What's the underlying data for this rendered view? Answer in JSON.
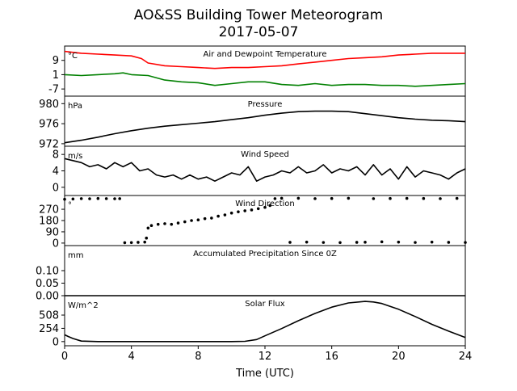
{
  "figure": {
    "title_line1": "AO&SS Building Tower Meteorogram",
    "title_line2": "2017-05-07",
    "xlabel": "Time (UTC)",
    "x_ticks": [
      0,
      4,
      8,
      12,
      16,
      20,
      24
    ],
    "xlim": [
      0,
      24
    ]
  },
  "chart_data": [
    {
      "type": "line",
      "title": "Air and Dewpoint Temperature",
      "unit_label": "°C",
      "ylim": [
        -11,
        17
      ],
      "y_ticks": [
        9,
        1,
        -7
      ],
      "series": [
        {
          "key": "air",
          "color": "#ff0000",
          "x": [
            0,
            0.5,
            1,
            2,
            3,
            4,
            4.6,
            5,
            6,
            7,
            8,
            9,
            10,
            11,
            12,
            13,
            14,
            15,
            16,
            17,
            18,
            19,
            20,
            21,
            22,
            23,
            24
          ],
          "y": [
            14,
            13.5,
            13,
            12.5,
            12,
            11.5,
            10,
            7.5,
            6,
            5.5,
            5,
            4.5,
            5,
            5,
            5.5,
            6,
            7,
            8,
            9,
            10,
            10.5,
            11,
            12,
            12.5,
            13,
            13,
            13
          ]
        },
        {
          "key": "dew",
          "color": "#008000",
          "x": [
            0,
            1,
            2,
            3,
            3.5,
            4,
            5,
            6,
            7,
            8,
            9,
            10,
            11,
            12,
            13,
            14,
            15,
            16,
            17,
            18,
            19,
            20,
            21,
            22,
            23,
            24
          ],
          "y": [
            1,
            0.5,
            1,
            1.5,
            2,
            1,
            0.5,
            -2,
            -3,
            -3.5,
            -5,
            -4,
            -3,
            -3,
            -4.5,
            -5,
            -4,
            -5,
            -4.5,
            -4.5,
            -5,
            -5,
            -5.5,
            -5,
            -4.5,
            -4
          ]
        }
      ]
    },
    {
      "type": "line",
      "title": "Pressure",
      "unit_label": "hPa",
      "ylim": [
        971.5,
        981.5
      ],
      "y_ticks": [
        980,
        976,
        972
      ],
      "series": [
        {
          "key": "pressure",
          "color": "#000000",
          "x": [
            0,
            1,
            2,
            3,
            4,
            5,
            6,
            7,
            8,
            9,
            10,
            11,
            12,
            13,
            14,
            15,
            16,
            17,
            18,
            19,
            20,
            21,
            22,
            23,
            24
          ],
          "y": [
            972.2,
            972.7,
            973.3,
            974.0,
            974.6,
            975.1,
            975.5,
            975.8,
            976.1,
            976.4,
            976.8,
            977.2,
            977.7,
            978.1,
            978.4,
            978.5,
            978.5,
            978.4,
            978.0,
            977.6,
            977.2,
            976.9,
            976.7,
            976.6,
            976.4
          ]
        }
      ]
    },
    {
      "type": "line",
      "title": "Wind Speed",
      "unit_label": "m/s",
      "ylim": [
        -2,
        10
      ],
      "y_ticks": [
        8,
        4,
        0
      ],
      "series": [
        {
          "key": "wind_speed",
          "color": "#000000",
          "x": [
            0,
            0.5,
            1,
            1.5,
            2,
            2.5,
            3,
            3.5,
            4,
            4.5,
            5,
            5.5,
            6,
            6.5,
            7,
            7.5,
            8,
            8.5,
            9,
            9.5,
            10,
            10.5,
            11,
            11.5,
            12,
            12.5,
            13,
            13.5,
            14,
            14.5,
            15,
            15.5,
            16,
            16.5,
            17,
            17.5,
            18,
            18.5,
            19,
            19.5,
            20,
            20.5,
            21,
            21.5,
            22,
            22.5,
            23,
            23.5,
            24
          ],
          "y": [
            7,
            6.5,
            6,
            5,
            5.5,
            4.5,
            6,
            5,
            6,
            4,
            4.5,
            3,
            2.5,
            3,
            2,
            3,
            2,
            2.5,
            1.5,
            2.5,
            3.5,
            3,
            5,
            1.5,
            2.5,
            3,
            4,
            3.5,
            5,
            3.5,
            4,
            5.5,
            3.5,
            4.5,
            4,
            5,
            3,
            5.5,
            3,
            4.5,
            2,
            5,
            2.5,
            4,
            3.5,
            3,
            2,
            3.5,
            4.5
          ]
        }
      ]
    },
    {
      "type": "scatter",
      "title": "Wind Direction",
      "unit_label": "°",
      "ylim": [
        -20,
        380
      ],
      "y_ticks": [
        270,
        180,
        90,
        0
      ],
      "series": [
        {
          "key": "wind_dir",
          "color": "#000000",
          "x": [
            0,
            0.5,
            1,
            1.5,
            2,
            2.5,
            3,
            3.3,
            3.6,
            4,
            4.4,
            4.8,
            4.9,
            5.0,
            5.2,
            5.6,
            6.0,
            6.4,
            6.8,
            7.2,
            7.6,
            8.0,
            8.4,
            8.8,
            9.2,
            9.6,
            10.0,
            10.4,
            10.8,
            11.2,
            11.6,
            12.0,
            12.3,
            12.6,
            13,
            13.5,
            14,
            14.5,
            15,
            15.5,
            16,
            16.5,
            17,
            17.5,
            18,
            18.5,
            19,
            19.5,
            20,
            20.5,
            21,
            21.5,
            22,
            22.5,
            23,
            23.5,
            24
          ],
          "y": [
            350,
            352,
            355,
            354,
            356,
            355,
            354,
            355,
            3,
            4,
            6,
            8,
            40,
            120,
            140,
            150,
            155,
            150,
            160,
            170,
            180,
            185,
            195,
            200,
            215,
            225,
            240,
            250,
            258,
            265,
            275,
            285,
            300,
            355,
            358,
            6,
            358,
            8,
            355,
            5,
            356,
            4,
            358,
            6,
            7,
            355,
            10,
            356,
            8,
            357,
            5,
            356,
            8,
            355,
            6,
            357,
            5
          ]
        }
      ]
    },
    {
      "type": "line",
      "title": "Accumulated Precipitation Since 0Z",
      "unit_label": "mm",
      "ylim": [
        0,
        0.2
      ],
      "y_ticks": [
        0.1,
        0.05,
        0.0
      ],
      "y_tick_labels": [
        "0.10",
        "0.05",
        "0.00"
      ],
      "series": [
        {
          "key": "precip",
          "color": "#000000",
          "x": [
            0,
            24
          ],
          "y": [
            0,
            0
          ]
        }
      ]
    },
    {
      "type": "line",
      "title": "Solar Flux",
      "unit_label": "W/m^2",
      "ylim": [
        -80,
        880
      ],
      "y_ticks": [
        508,
        254,
        0
      ],
      "series": [
        {
          "key": "solar",
          "color": "#000000",
          "x": [
            0,
            0.2,
            0.5,
            1.0,
            2,
            4,
            6,
            8,
            10,
            10.8,
            11.5,
            12,
            13,
            14,
            15,
            16,
            17,
            18,
            18.5,
            19,
            20,
            21,
            22,
            23,
            24
          ],
          "y": [
            130,
            100,
            60,
            10,
            0,
            0,
            0,
            0,
            0,
            5,
            40,
            110,
            250,
            400,
            540,
            660,
            740,
            770,
            760,
            730,
            620,
            480,
            330,
            200,
            80
          ]
        }
      ]
    }
  ]
}
